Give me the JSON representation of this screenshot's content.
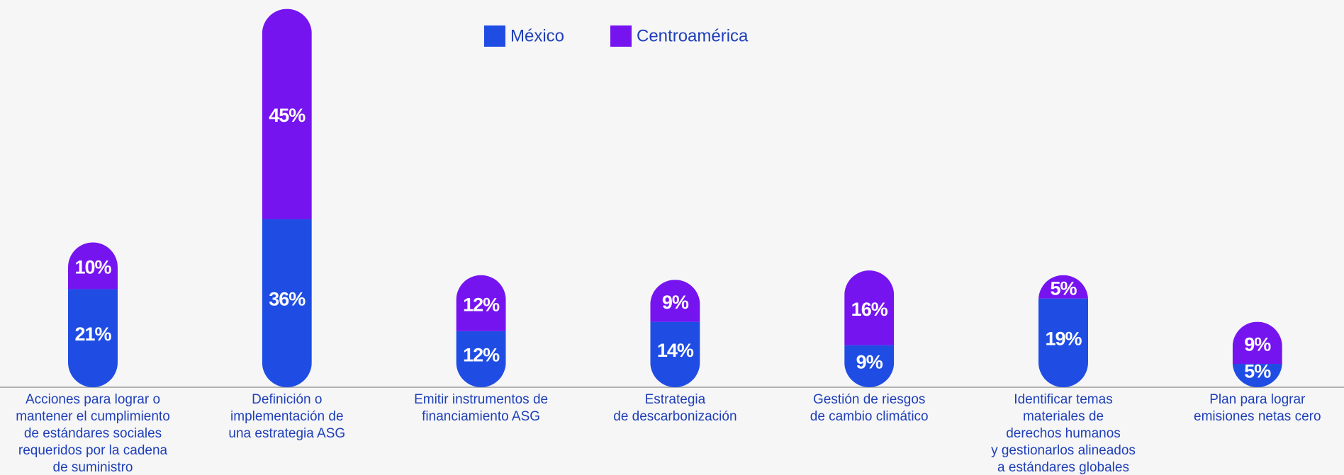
{
  "chart_data": {
    "type": "bar",
    "stacked": true,
    "categories": [
      [
        "Acciones para lograr o",
        "mantener el cumplimiento",
        "de estándares sociales",
        "requeridos por la cadena",
        "de suministro"
      ],
      [
        "Definición o",
        "implementación de",
        "una estrategia ASG"
      ],
      [
        "Emitir instrumentos de",
        "financiamiento ASG"
      ],
      [
        "Estrategia",
        "de descarbonización"
      ],
      [
        "Gestión de riesgos",
        "de cambio climático"
      ],
      [
        "Identificar temas",
        "materiales de",
        "derechos humanos",
        "y gestionarlos alineados",
        "a estándares globales"
      ],
      [
        "Plan para lograr",
        "emisiones netas cero"
      ]
    ],
    "series": [
      {
        "name": "México",
        "color": "#1f4de4",
        "values": [
          21,
          36,
          12,
          14,
          9,
          19,
          5
        ],
        "value_labels": [
          "21%",
          "36%",
          "12%",
          "14%",
          "9%",
          "19%",
          "5%"
        ]
      },
      {
        "name": "Centroamérica",
        "color": "#7614f0",
        "values": [
          10,
          45,
          12,
          9,
          16,
          5,
          9
        ],
        "value_labels": [
          "10%",
          "45%",
          "12%",
          "9%",
          "16%",
          "5%",
          "9%"
        ]
      }
    ],
    "ylim": [
      0,
      82
    ],
    "legend": "top"
  }
}
